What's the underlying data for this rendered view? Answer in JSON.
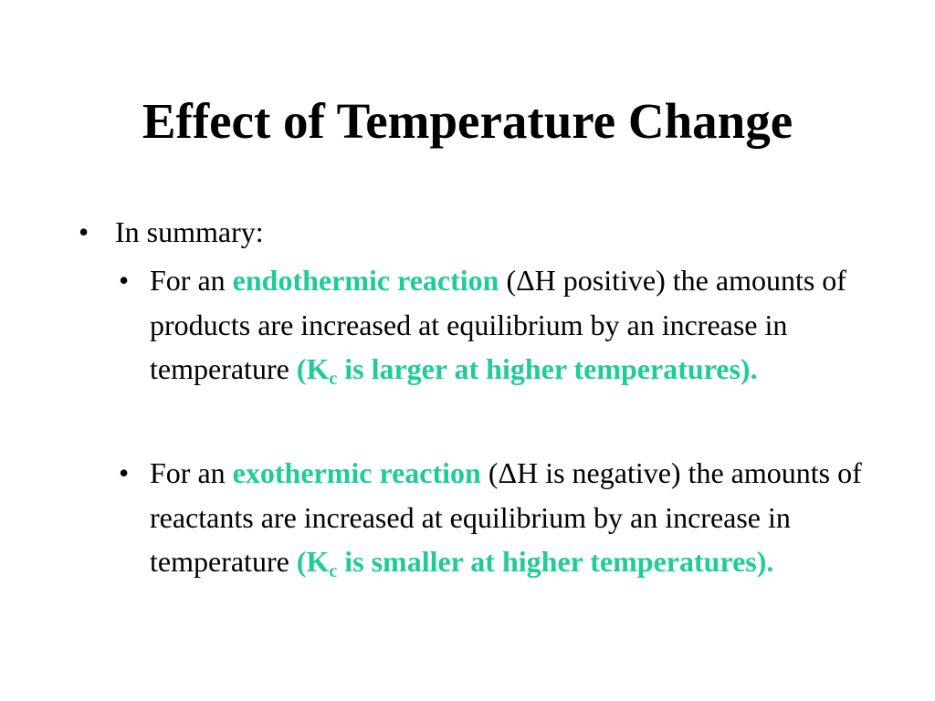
{
  "slide": {
    "title": "Effect of Temperature Change",
    "summary_label": "In summary:",
    "accent_color": "#1fcc99",
    "items": [
      {
        "intro": "For an ",
        "term": "endothermic reaction",
        "after_term": " (ΔH positive) the amounts of products are increased at equilibrium by an increase in temperature ",
        "k_open": "(K",
        "k_sub": "c",
        "k_rest": " is larger at higher temperatures)."
      },
      {
        "intro": "For an ",
        "term": "exothermic reaction",
        "after_term": " (ΔH is negative) the amounts of reactants are increased at equilibrium by an increase in temperature ",
        "k_open": "(K",
        "k_sub": "c",
        "k_rest": " is smaller at higher temperatures)."
      }
    ]
  }
}
